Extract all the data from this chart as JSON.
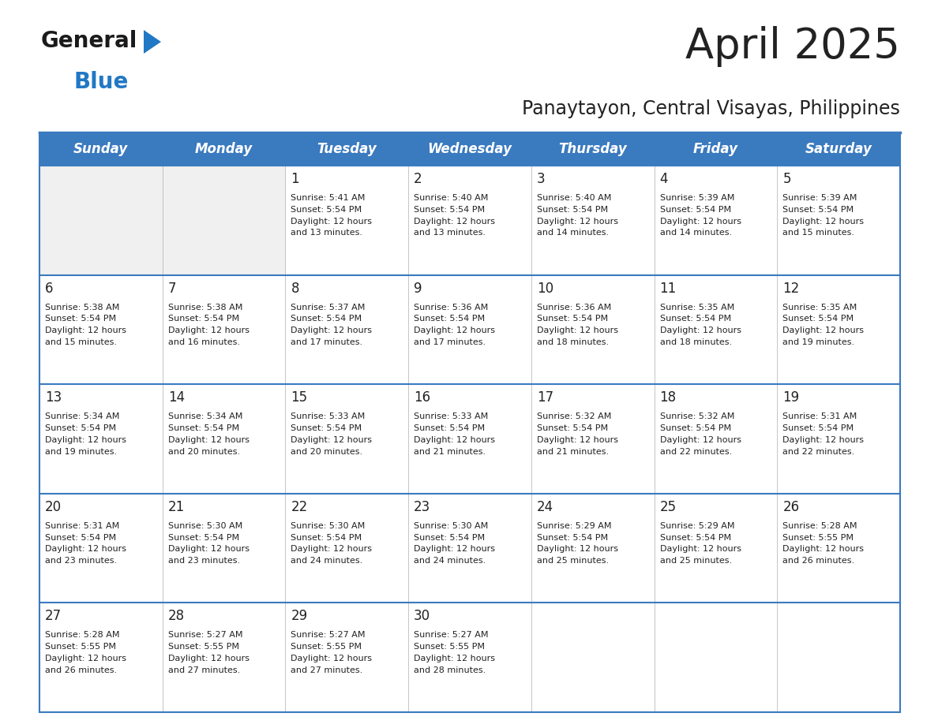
{
  "title": "April 2025",
  "subtitle": "Panaytayon, Central Visayas, Philippines",
  "header_bg_color": "#3a7abf",
  "header_text_color": "#ffffff",
  "cell_bg_color_light": "#f0f0f0",
  "cell_bg_color_white": "#ffffff",
  "border_color": "#3a7abf",
  "text_color": "#222222",
  "days_of_week": [
    "Sunday",
    "Monday",
    "Tuesday",
    "Wednesday",
    "Thursday",
    "Friday",
    "Saturday"
  ],
  "logo_general_color": "#1a1a1a",
  "logo_blue_color": "#2178c4",
  "weeks": [
    [
      {
        "day": "",
        "info": ""
      },
      {
        "day": "",
        "info": ""
      },
      {
        "day": "1",
        "info": "Sunrise: 5:41 AM\nSunset: 5:54 PM\nDaylight: 12 hours\nand 13 minutes."
      },
      {
        "day": "2",
        "info": "Sunrise: 5:40 AM\nSunset: 5:54 PM\nDaylight: 12 hours\nand 13 minutes."
      },
      {
        "day": "3",
        "info": "Sunrise: 5:40 AM\nSunset: 5:54 PM\nDaylight: 12 hours\nand 14 minutes."
      },
      {
        "day": "4",
        "info": "Sunrise: 5:39 AM\nSunset: 5:54 PM\nDaylight: 12 hours\nand 14 minutes."
      },
      {
        "day": "5",
        "info": "Sunrise: 5:39 AM\nSunset: 5:54 PM\nDaylight: 12 hours\nand 15 minutes."
      }
    ],
    [
      {
        "day": "6",
        "info": "Sunrise: 5:38 AM\nSunset: 5:54 PM\nDaylight: 12 hours\nand 15 minutes."
      },
      {
        "day": "7",
        "info": "Sunrise: 5:38 AM\nSunset: 5:54 PM\nDaylight: 12 hours\nand 16 minutes."
      },
      {
        "day": "8",
        "info": "Sunrise: 5:37 AM\nSunset: 5:54 PM\nDaylight: 12 hours\nand 17 minutes."
      },
      {
        "day": "9",
        "info": "Sunrise: 5:36 AM\nSunset: 5:54 PM\nDaylight: 12 hours\nand 17 minutes."
      },
      {
        "day": "10",
        "info": "Sunrise: 5:36 AM\nSunset: 5:54 PM\nDaylight: 12 hours\nand 18 minutes."
      },
      {
        "day": "11",
        "info": "Sunrise: 5:35 AM\nSunset: 5:54 PM\nDaylight: 12 hours\nand 18 minutes."
      },
      {
        "day": "12",
        "info": "Sunrise: 5:35 AM\nSunset: 5:54 PM\nDaylight: 12 hours\nand 19 minutes."
      }
    ],
    [
      {
        "day": "13",
        "info": "Sunrise: 5:34 AM\nSunset: 5:54 PM\nDaylight: 12 hours\nand 19 minutes."
      },
      {
        "day": "14",
        "info": "Sunrise: 5:34 AM\nSunset: 5:54 PM\nDaylight: 12 hours\nand 20 minutes."
      },
      {
        "day": "15",
        "info": "Sunrise: 5:33 AM\nSunset: 5:54 PM\nDaylight: 12 hours\nand 20 minutes."
      },
      {
        "day": "16",
        "info": "Sunrise: 5:33 AM\nSunset: 5:54 PM\nDaylight: 12 hours\nand 21 minutes."
      },
      {
        "day": "17",
        "info": "Sunrise: 5:32 AM\nSunset: 5:54 PM\nDaylight: 12 hours\nand 21 minutes."
      },
      {
        "day": "18",
        "info": "Sunrise: 5:32 AM\nSunset: 5:54 PM\nDaylight: 12 hours\nand 22 minutes."
      },
      {
        "day": "19",
        "info": "Sunrise: 5:31 AM\nSunset: 5:54 PM\nDaylight: 12 hours\nand 22 minutes."
      }
    ],
    [
      {
        "day": "20",
        "info": "Sunrise: 5:31 AM\nSunset: 5:54 PM\nDaylight: 12 hours\nand 23 minutes."
      },
      {
        "day": "21",
        "info": "Sunrise: 5:30 AM\nSunset: 5:54 PM\nDaylight: 12 hours\nand 23 minutes."
      },
      {
        "day": "22",
        "info": "Sunrise: 5:30 AM\nSunset: 5:54 PM\nDaylight: 12 hours\nand 24 minutes."
      },
      {
        "day": "23",
        "info": "Sunrise: 5:30 AM\nSunset: 5:54 PM\nDaylight: 12 hours\nand 24 minutes."
      },
      {
        "day": "24",
        "info": "Sunrise: 5:29 AM\nSunset: 5:54 PM\nDaylight: 12 hours\nand 25 minutes."
      },
      {
        "day": "25",
        "info": "Sunrise: 5:29 AM\nSunset: 5:54 PM\nDaylight: 12 hours\nand 25 minutes."
      },
      {
        "day": "26",
        "info": "Sunrise: 5:28 AM\nSunset: 5:55 PM\nDaylight: 12 hours\nand 26 minutes."
      }
    ],
    [
      {
        "day": "27",
        "info": "Sunrise: 5:28 AM\nSunset: 5:55 PM\nDaylight: 12 hours\nand 26 minutes."
      },
      {
        "day": "28",
        "info": "Sunrise: 5:27 AM\nSunset: 5:55 PM\nDaylight: 12 hours\nand 27 minutes."
      },
      {
        "day": "29",
        "info": "Sunrise: 5:27 AM\nSunset: 5:55 PM\nDaylight: 12 hours\nand 27 minutes."
      },
      {
        "day": "30",
        "info": "Sunrise: 5:27 AM\nSunset: 5:55 PM\nDaylight: 12 hours\nand 28 minutes."
      },
      {
        "day": "",
        "info": ""
      },
      {
        "day": "",
        "info": ""
      },
      {
        "day": "",
        "info": ""
      }
    ]
  ]
}
